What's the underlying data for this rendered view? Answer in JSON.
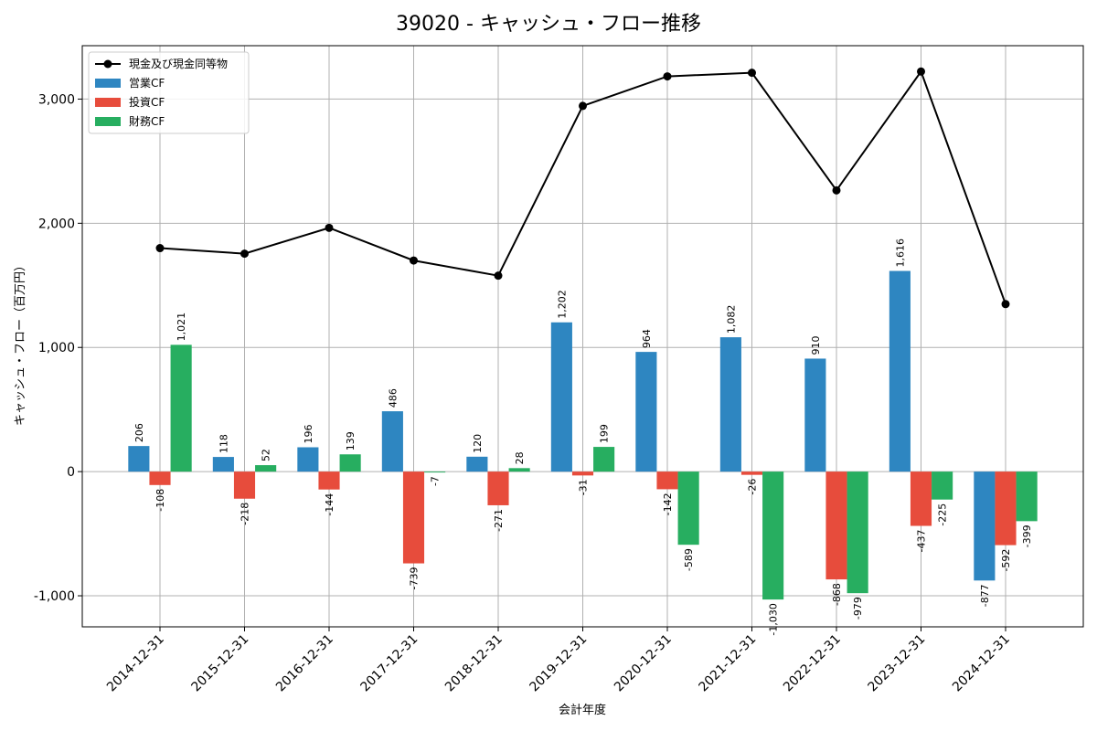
{
  "chart_data": {
    "type": "bar",
    "title": "39020 - キャッシュ・フロー推移",
    "xlabel": "会計年度",
    "ylabel": "キャッシュ・フロー（百万円）",
    "ylim": [
      -1250,
      3430
    ],
    "yticks": [
      -1000,
      0,
      1000,
      2000,
      3000
    ],
    "ytick_labels": [
      "-1,000",
      "0",
      "1,000",
      "2,000",
      "3,000"
    ],
    "grid": true,
    "legend_position": "top-left",
    "categories": [
      "2014-12-31",
      "2015-12-31",
      "2016-12-31",
      "2017-12-31",
      "2018-12-31",
      "2019-12-31",
      "2020-12-31",
      "2021-12-31",
      "2022-12-31",
      "2023-12-31",
      "2024-12-31"
    ],
    "series": [
      {
        "name": "営業CF",
        "kind": "bar",
        "color": "#2e86c1",
        "values": [
          206,
          118,
          196,
          486,
          120,
          1202,
          964,
          1082,
          910,
          1616,
          -877
        ],
        "labels": [
          "206",
          "118",
          "196",
          "486",
          "120",
          "1,202",
          "964",
          "1,082",
          "910",
          "1,616",
          "-877"
        ]
      },
      {
        "name": "投資CF",
        "kind": "bar",
        "color": "#e74c3c",
        "values": [
          -108,
          -218,
          -144,
          -739,
          -271,
          -31,
          -142,
          -26,
          -868,
          -437,
          -592
        ],
        "labels": [
          "-108",
          "-218",
          "-144",
          "-739",
          "-271",
          "-31",
          "-142",
          "-26",
          "-868",
          "-437",
          "-592"
        ]
      },
      {
        "name": "財務CF",
        "kind": "bar",
        "color": "#27ae60",
        "values": [
          1021,
          52,
          139,
          -7,
          28,
          199,
          -589,
          -1030,
          -979,
          -225,
          -399
        ],
        "labels": [
          "1,021",
          "52",
          "139",
          "-7",
          "28",
          "199",
          "-589",
          "-1,030",
          "-979",
          "-225",
          "-399"
        ]
      },
      {
        "name": "現金及び現金同等物",
        "kind": "line",
        "color": "#000000",
        "values": [
          1800,
          1755,
          1963,
          1700,
          1578,
          2945,
          3183,
          3212,
          2265,
          3222,
          1349
        ]
      }
    ]
  }
}
